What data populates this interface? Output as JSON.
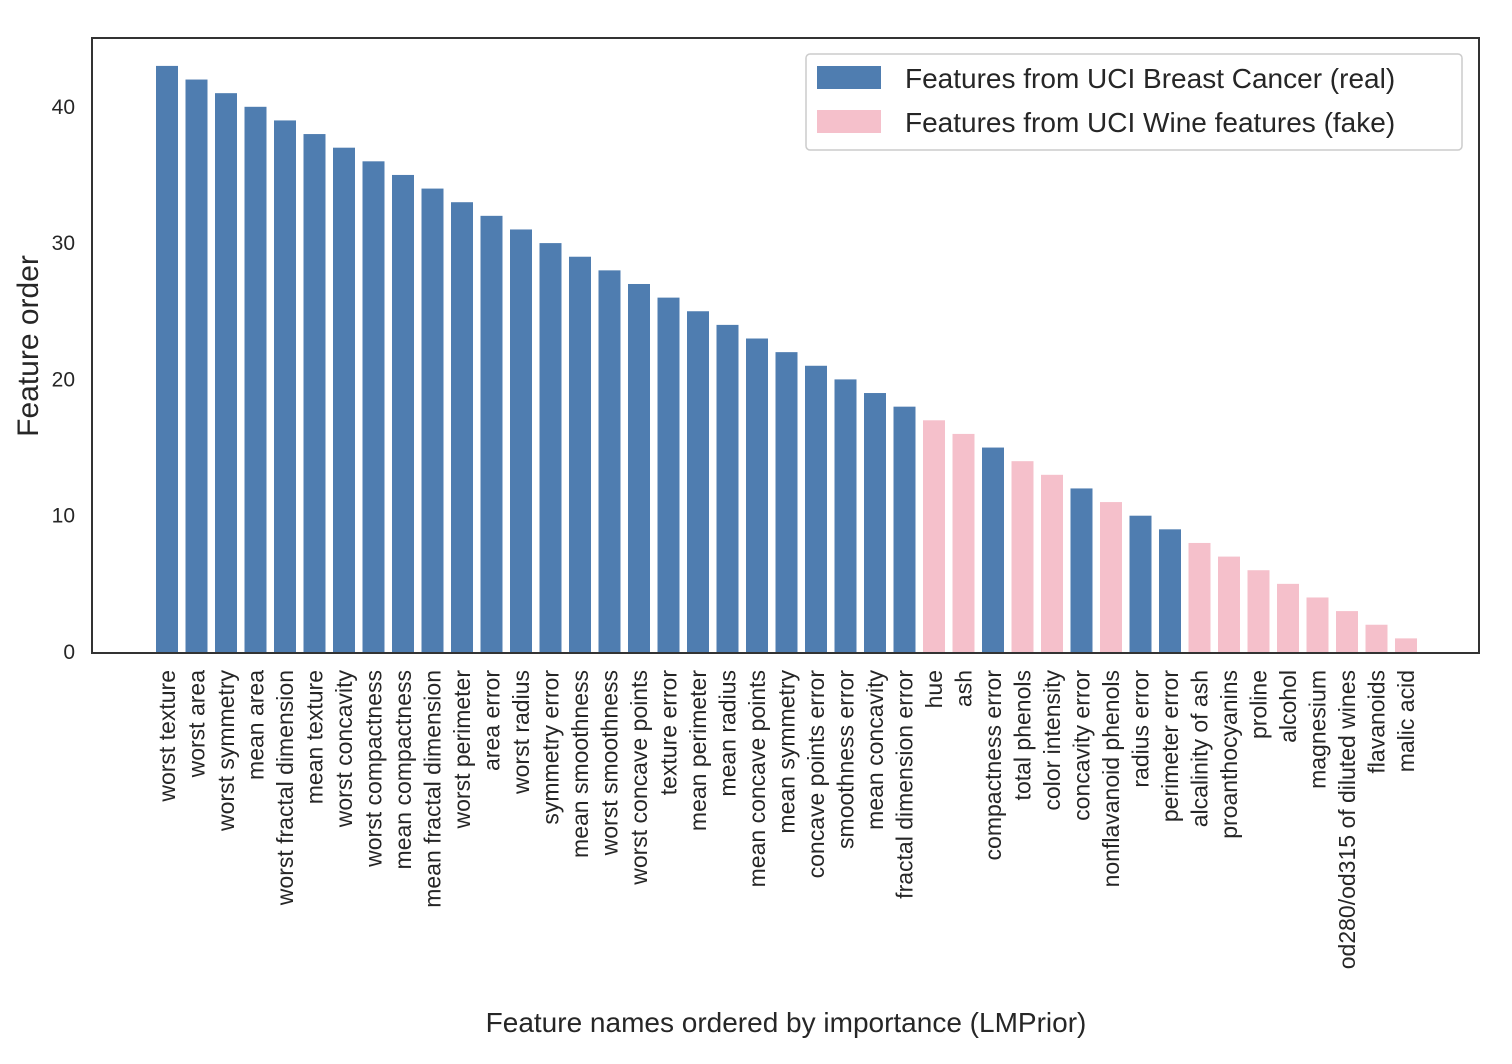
{
  "chart_data": {
    "type": "bar",
    "title": "",
    "xlabel": "Feature names ordered by importance (LMPrior)",
    "ylabel": "Feature order",
    "ylim": [
      0,
      45
    ],
    "yticks": [
      0,
      10,
      20,
      30,
      40
    ],
    "grid": false,
    "legend_position": "top-right",
    "colors": {
      "real": "#4f7db0",
      "fake": "#f5c0cb"
    },
    "series": [
      {
        "name": "Features from UCI Breast Cancer (real)",
        "key": "real"
      },
      {
        "name": "Features from UCI Wine features (fake)",
        "key": "fake"
      }
    ],
    "categories": [
      "worst texture",
      "worst area",
      "worst symmetry",
      "mean area",
      "worst fractal dimension",
      "mean texture",
      "worst concavity",
      "worst compactness",
      "mean compactness",
      "mean fractal dimension",
      "worst perimeter",
      "area error",
      "worst radius",
      "symmetry error",
      "mean smoothness",
      "worst smoothness",
      "worst concave points",
      "texture error",
      "mean perimeter",
      "mean radius",
      "mean concave points",
      "mean symmetry",
      "concave points error",
      "smoothness error",
      "mean concavity",
      "fractal dimension error",
      "hue",
      "ash",
      "compactness error",
      "total phenols",
      "color intensity",
      "concavity error",
      "nonflavanoid phenols",
      "radius error",
      "perimeter error",
      "alcalinity of ash",
      "proanthocyanins",
      "proline",
      "alcohol",
      "magnesium",
      "od280/od315 of diluted wines",
      "flavanoids",
      "malic acid"
    ],
    "values": [
      43,
      42,
      41,
      40,
      39,
      38,
      37,
      36,
      35,
      34,
      33,
      32,
      31,
      30,
      29,
      28,
      27,
      26,
      25,
      24,
      23,
      22,
      21,
      20,
      19,
      18,
      17,
      16,
      15,
      14,
      13,
      12,
      11,
      10,
      9,
      8,
      7,
      6,
      5,
      4,
      3,
      2,
      1
    ],
    "group": [
      "real",
      "real",
      "real",
      "real",
      "real",
      "real",
      "real",
      "real",
      "real",
      "real",
      "real",
      "real",
      "real",
      "real",
      "real",
      "real",
      "real",
      "real",
      "real",
      "real",
      "real",
      "real",
      "real",
      "real",
      "real",
      "real",
      "fake",
      "fake",
      "real",
      "fake",
      "fake",
      "real",
      "fake",
      "real",
      "real",
      "fake",
      "fake",
      "fake",
      "fake",
      "fake",
      "fake",
      "fake",
      "fake"
    ]
  }
}
